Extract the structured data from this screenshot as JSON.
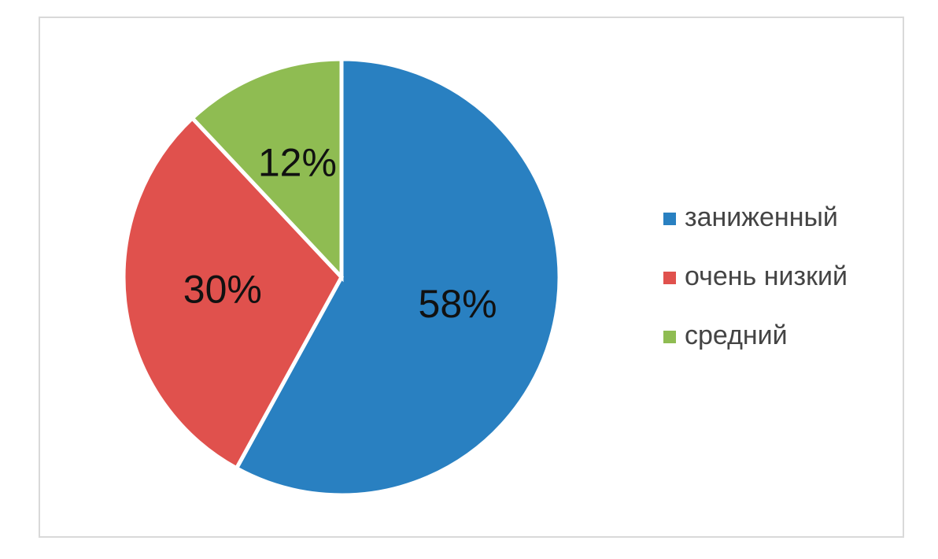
{
  "chart_data": {
    "type": "pie",
    "categories": [
      "заниженный",
      "очень низкий",
      "средний"
    ],
    "values": [
      58,
      30,
      12
    ],
    "value_labels": [
      "58%",
      "30%",
      "12%"
    ],
    "colors": [
      "#2980c1",
      "#e0514d",
      "#8fbc52"
    ],
    "legend": "right"
  }
}
